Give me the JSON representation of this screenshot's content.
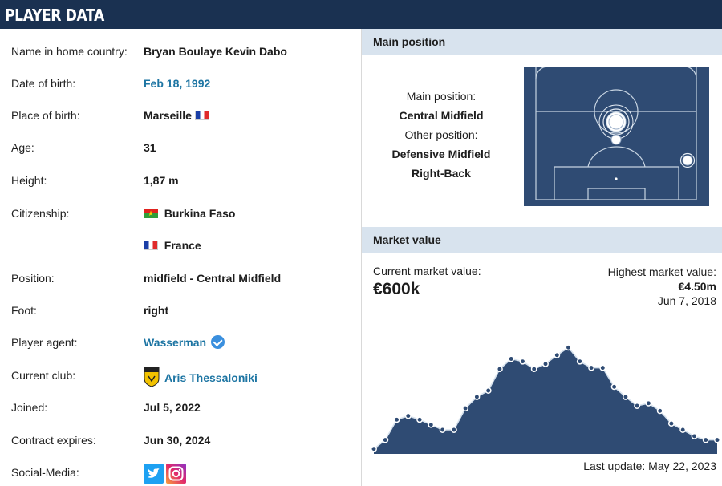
{
  "header": {
    "title": "PLAYER DATA"
  },
  "facts": [
    {
      "label": "Name in home country:",
      "value": "Bryan Boulaye Kevin Dabo"
    },
    {
      "label": "Date of birth:",
      "value": "Feb 18, 1992"
    },
    {
      "label": "Place of birth:",
      "value": "Marseille"
    },
    {
      "label": "Age:",
      "value": "31"
    },
    {
      "label": "Height:",
      "value": "1,87 m"
    },
    {
      "label": "Citizenship:",
      "value": "Burkina Faso"
    },
    {
      "label": "",
      "value": "France"
    },
    {
      "label": "Position:",
      "value": "midfield - Central Midfield"
    },
    {
      "label": "Foot:",
      "value": "right"
    },
    {
      "label": "Player agent:",
      "value": "Wasserman"
    },
    {
      "label": "Current club:",
      "value": "Aris Thessaloniki"
    },
    {
      "label": "Joined:",
      "value": "Jul 5, 2022"
    },
    {
      "label": "Contract expires:",
      "value": "Jun 30, 2024"
    },
    {
      "label": "Social-Media:",
      "value": ""
    }
  ],
  "main_position": {
    "heading": "Main position",
    "main_label": "Main position:",
    "main_value": "Central Midfield",
    "other_label": "Other position:",
    "other_values": [
      "Defensive Midfield",
      "Right-Back"
    ]
  },
  "market_value": {
    "heading": "Market value",
    "current_label": "Current market value:",
    "current_value": "€600k",
    "highest_label": "Highest market value:",
    "highest_value": "€4.50m",
    "highest_date": "Jun 7, 2018",
    "last_update": "Last update: May 22, 2023"
  },
  "colors": {
    "header": "#1a3151",
    "section": "#d8e3ee",
    "link": "#1d75a3",
    "chart_fill": "#2f4b73"
  },
  "icons": {
    "verified": "check-badge-icon",
    "twitter": "twitter-icon",
    "instagram": "instagram-icon"
  },
  "chart_data": {
    "type": "area",
    "y": [
      0.04,
      0.11,
      0.27,
      0.3,
      0.27,
      0.23,
      0.19,
      0.19,
      0.36,
      0.45,
      0.5,
      0.67,
      0.75,
      0.73,
      0.67,
      0.71,
      0.78,
      0.84,
      0.73,
      0.68,
      0.68,
      0.53,
      0.45,
      0.38,
      0.4,
      0.34,
      0.24,
      0.19,
      0.14,
      0.11,
      0.11
    ],
    "y_unit": "fraction of peak (not labeled)"
  }
}
